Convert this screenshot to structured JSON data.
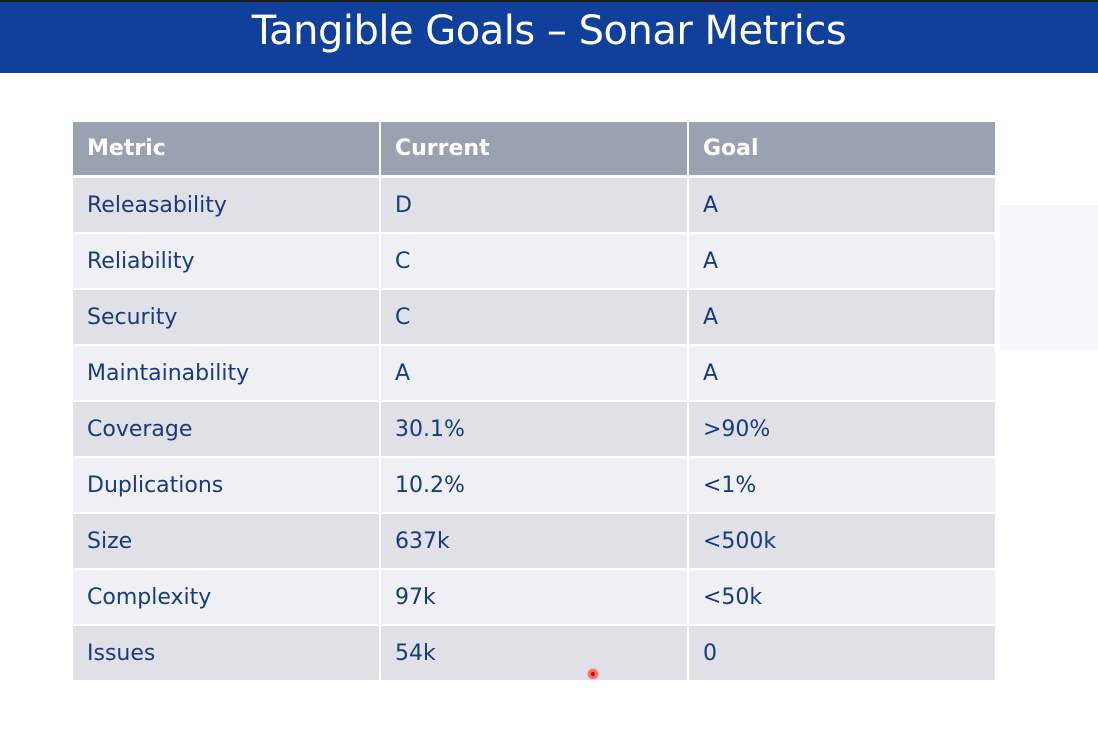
{
  "slide": {
    "title": "Tangible Goals – Sonar Metrics",
    "colors": {
      "title_bar": "#10409a",
      "header_bg": "#9aa1b1",
      "row_odd": "#dfe1e6",
      "row_even": "#eff0f4",
      "cell_text": "#1a3a7c"
    }
  },
  "table": {
    "headers": [
      "Metric",
      "Current",
      "Goal"
    ],
    "rows": [
      {
        "metric": "Releasability",
        "current": "D",
        "goal": "A"
      },
      {
        "metric": "Reliability",
        "current": "C",
        "goal": "A"
      },
      {
        "metric": "Security",
        "current": "C",
        "goal": "A"
      },
      {
        "metric": "Maintainability",
        "current": "A",
        "goal": "A"
      },
      {
        "metric": "Coverage",
        "current": "30.1%",
        "goal": ">90%"
      },
      {
        "metric": "Duplications",
        "current": "10.2%",
        "goal": "<1%"
      },
      {
        "metric": "Size",
        "current": "637k",
        "goal": "<500k"
      },
      {
        "metric": "Complexity",
        "current": "97k",
        "goal": "<50k"
      },
      {
        "metric": "Issues",
        "current": "54k",
        "goal": "0"
      }
    ]
  },
  "cursor": {
    "icon": "laser-pointer-icon"
  }
}
